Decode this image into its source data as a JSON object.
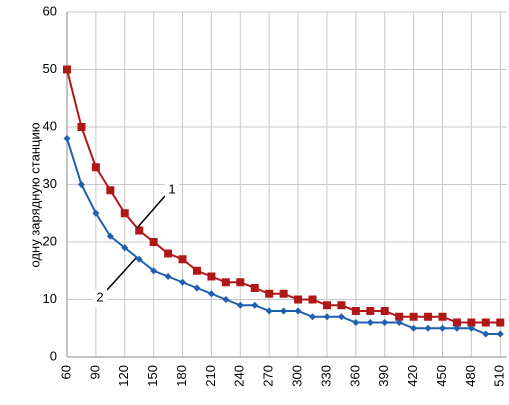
{
  "chart_data": {
    "type": "line",
    "y_label": "одну зарядную станцию",
    "x": [
      60,
      75,
      90,
      105,
      120,
      135,
      150,
      165,
      180,
      195,
      210,
      225,
      240,
      255,
      270,
      285,
      300,
      315,
      330,
      345,
      360,
      375,
      390,
      405,
      420,
      435,
      450,
      465,
      480,
      495,
      510
    ],
    "series": [
      {
        "name": "1",
        "color": "#b01818",
        "marker": "square",
        "values": [
          50,
          40,
          33,
          29,
          25,
          22,
          20,
          18,
          17,
          15,
          14,
          13,
          13,
          12,
          11,
          11,
          10,
          10,
          9,
          9,
          8,
          8,
          8,
          7,
          7,
          7,
          7,
          6,
          6,
          6,
          6
        ]
      },
      {
        "name": "2",
        "color": "#1f5fb0",
        "marker": "diamond",
        "values": [
          38,
          30,
          25,
          21,
          19,
          17,
          15,
          14,
          13,
          12,
          11,
          10,
          9,
          9,
          8,
          8,
          8,
          7,
          7,
          7,
          6,
          6,
          6,
          6,
          5,
          5,
          5,
          5,
          5,
          4,
          4
        ]
      }
    ],
    "xlim": [
      60,
      517
    ],
    "ylim": [
      0,
      60
    ],
    "xticks": [
      60,
      90,
      120,
      150,
      180,
      210,
      240,
      270,
      300,
      330,
      360,
      390,
      420,
      450,
      480,
      510
    ],
    "yticks": [
      0,
      10,
      20,
      30,
      40,
      50,
      60
    ],
    "grid": true
  }
}
